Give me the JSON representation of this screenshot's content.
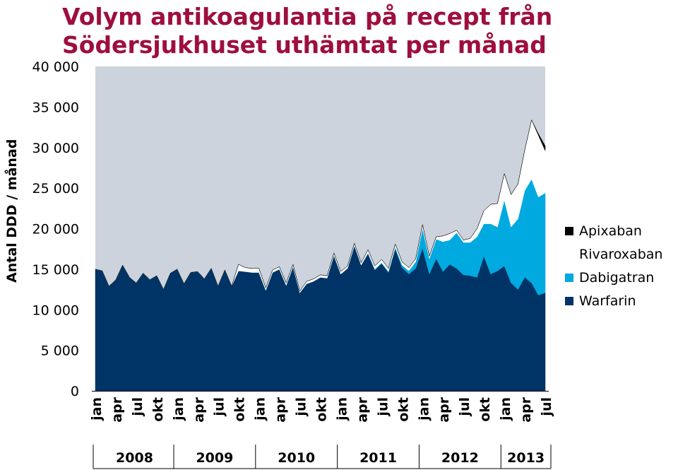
{
  "chart_data": {
    "type": "area",
    "stacked": true,
    "title": [
      "Volym antikoagulantia på recept från",
      "Södersjukhuset uthämtat per månad"
    ],
    "ylabel": "Antal DDD / månad",
    "ylim": [
      0,
      40000
    ],
    "yticks": [
      0,
      5000,
      10000,
      15000,
      20000,
      25000,
      30000,
      35000,
      40000
    ],
    "ytick_labels": [
      "0",
      "5 000",
      "10 000",
      "15 000",
      "20 000",
      "25 000",
      "30 000",
      "35 000",
      "40 000"
    ],
    "months": [
      "2008-01",
      "2008-02",
      "2008-03",
      "2008-04",
      "2008-05",
      "2008-06",
      "2008-07",
      "2008-08",
      "2008-09",
      "2008-10",
      "2008-11",
      "2008-12",
      "2009-01",
      "2009-02",
      "2009-03",
      "2009-04",
      "2009-05",
      "2009-06",
      "2009-07",
      "2009-08",
      "2009-09",
      "2009-10",
      "2009-11",
      "2009-12",
      "2010-01",
      "2010-02",
      "2010-03",
      "2010-04",
      "2010-05",
      "2010-06",
      "2010-07",
      "2010-08",
      "2010-09",
      "2010-10",
      "2010-11",
      "2010-12",
      "2011-01",
      "2011-02",
      "2011-03",
      "2011-04",
      "2011-05",
      "2011-06",
      "2011-07",
      "2011-08",
      "2011-09",
      "2011-10",
      "2011-11",
      "2011-12",
      "2012-01",
      "2012-02",
      "2012-03",
      "2012-04",
      "2012-05",
      "2012-06",
      "2012-07",
      "2012-08",
      "2012-09",
      "2012-10",
      "2012-11",
      "2012-12",
      "2013-01",
      "2013-02",
      "2013-03",
      "2013-04",
      "2013-05",
      "2013-06",
      "2013-07"
    ],
    "x_month_labels": [
      "jan",
      "apr",
      "jul",
      "okt",
      "jan",
      "apr",
      "jul",
      "okt",
      "jan",
      "apr",
      "jul",
      "okt",
      "jan",
      "apr",
      "jul",
      "okt",
      "jan",
      "apr",
      "jul",
      "okt",
      "jan",
      "apr",
      "jul"
    ],
    "x_years": [
      "2008",
      "2009",
      "2010",
      "2011",
      "2012",
      "2013"
    ],
    "legend_position": "right",
    "series": [
      {
        "name": "Warfarin",
        "color": "#003366",
        "values": [
          15000,
          14800,
          12900,
          13700,
          15500,
          14000,
          13300,
          14500,
          13700,
          14200,
          12500,
          14500,
          15000,
          13200,
          14600,
          14700,
          13800,
          15100,
          12900,
          14900,
          12900,
          14800,
          14700,
          14600,
          14600,
          12400,
          14600,
          15000,
          13000,
          15300,
          12100,
          13200,
          13500,
          14000,
          13900,
          16700,
          14400,
          15100,
          17900,
          15500,
          16900,
          14900,
          15700,
          14600,
          17500,
          15200,
          14400,
          15100,
          17600,
          14400,
          16300,
          14700,
          15600,
          15100,
          14300,
          14200,
          14000,
          16600,
          14400,
          14800,
          15400,
          13300,
          12500,
          14000,
          13300,
          11800,
          12100
        ]
      },
      {
        "name": "Dabigatran",
        "color": "#00a9e0",
        "values": [
          0,
          0,
          0,
          0,
          0,
          0,
          0,
          0,
          0,
          0,
          0,
          0,
          0,
          0,
          0,
          0,
          0,
          0,
          0,
          0,
          0,
          0,
          0,
          0,
          0,
          0,
          0,
          0,
          0,
          0,
          0,
          0,
          0,
          0,
          0,
          0,
          0,
          0,
          0,
          0,
          100,
          100,
          100,
          100,
          200,
          300,
          400,
          800,
          2400,
          1900,
          2400,
          3700,
          3000,
          4400,
          4000,
          4100,
          5000,
          4000,
          6200,
          5400,
          8100,
          6900,
          8700,
          10700,
          12800,
          12100,
          12300
        ]
      },
      {
        "name": "Rivaroxaban",
        "color": "#ffffff",
        "values": [
          0,
          0,
          0,
          0,
          0,
          0,
          0,
          0,
          0,
          0,
          0,
          0,
          0,
          0,
          0,
          0,
          0,
          0,
          0,
          0,
          0,
          800,
          500,
          500,
          500,
          300,
          300,
          300,
          300,
          300,
          200,
          300,
          300,
          300,
          300,
          300,
          300,
          300,
          300,
          300,
          400,
          400,
          400,
          400,
          400,
          400,
          400,
          400,
          500,
          300,
          300,
          700,
          800,
          300,
          300,
          500,
          1000,
          1600,
          2400,
          2900,
          3300,
          4000,
          4300,
          5000,
          7300,
          7600,
          5200
        ]
      },
      {
        "name": "Apixaban",
        "color": "#000000",
        "values": [
          0,
          0,
          0,
          0,
          0,
          0,
          0,
          0,
          0,
          0,
          0,
          0,
          0,
          0,
          0,
          0,
          0,
          0,
          0,
          0,
          0,
          0,
          0,
          0,
          0,
          0,
          0,
          0,
          0,
          0,
          0,
          0,
          0,
          0,
          0,
          0,
          0,
          0,
          0,
          0,
          0,
          0,
          0,
          0,
          0,
          0,
          0,
          0,
          0,
          0,
          0,
          0,
          0,
          0,
          0,
          0,
          0,
          0,
          0,
          0,
          0,
          0,
          0,
          0,
          0,
          200,
          600
        ]
      }
    ],
    "legend_order": [
      "Apixaban",
      "Rivaroxaban",
      "Dabigatran",
      "Warfarin"
    ],
    "plot_background": "#cdd3dc"
  }
}
